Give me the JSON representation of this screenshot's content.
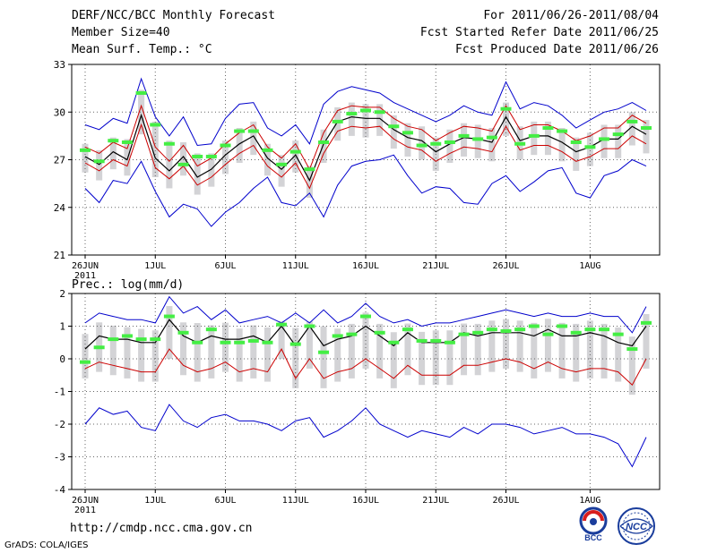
{
  "header": {
    "title": "DERF/NCC/BCC Monthly Forecast",
    "member_size": "Member Size=40",
    "variable": "Mean Surf. Temp.: °C",
    "period": "For 2011/06/26-2011/08/04",
    "started": "Fcst Started Refer Date 2011/06/25",
    "produced": "Fcst Produced Date 2011/06/26"
  },
  "footer": {
    "url": "http://cmdp.ncc.cma.gov.cn",
    "credit": "GrADS: COLA/IGES",
    "logo1_text": "BCC",
    "logo2_text": "NCC"
  },
  "colors": {
    "ensemble_max_min": "#0000cc",
    "spread": "#cc0000",
    "mean": "#000000",
    "box": "#d3d3d6",
    "median": "#44ee44",
    "grid": "#666666"
  },
  "chart_data": [
    {
      "type": "line",
      "title": "Mean Surf. Temp.: °C",
      "x_tick_labels": [
        "26JUN",
        "1JUL",
        "6JUL",
        "11JUL",
        "16JUL",
        "21JUL",
        "26JUL",
        "1AUG"
      ],
      "x_year_label": "2011",
      "x_tick_days": [
        0,
        5,
        10,
        15,
        20,
        25,
        30,
        36
      ],
      "ylim": [
        21,
        33
      ],
      "y_ticks": [
        21,
        24,
        27,
        30,
        33
      ],
      "series": [
        {
          "name": "max",
          "values": [
            29.2,
            28.9,
            29.6,
            29.3,
            32.1,
            29.7,
            28.5,
            29.7,
            27.9,
            28.0,
            29.6,
            30.5,
            30.6,
            29.0,
            28.5,
            29.2,
            28.0,
            30.5,
            31.3,
            31.6,
            31.4,
            31.2,
            30.6,
            30.2,
            29.8,
            29.4,
            29.8,
            30.4,
            30.0,
            29.8,
            31.9,
            30.2,
            30.6,
            30.4,
            29.8,
            29.0,
            29.5,
            30.0,
            30.2,
            30.6,
            30.1
          ]
        },
        {
          "name": "upper",
          "values": [
            27.8,
            27.4,
            28.1,
            27.7,
            30.4,
            27.8,
            26.9,
            27.9,
            26.6,
            27.1,
            28.0,
            28.7,
            29.2,
            27.8,
            27.1,
            28.0,
            26.4,
            28.7,
            30.1,
            30.4,
            30.3,
            30.3,
            29.6,
            29.1,
            28.9,
            28.2,
            28.7,
            29.1,
            29.0,
            28.8,
            30.4,
            28.9,
            29.2,
            29.2,
            28.8,
            28.2,
            28.5,
            29.0,
            29.0,
            29.8,
            29.3
          ]
        },
        {
          "name": "mean",
          "values": [
            27.2,
            26.7,
            27.5,
            27.0,
            29.8,
            27.1,
            26.3,
            27.2,
            25.9,
            26.4,
            27.3,
            28.0,
            28.5,
            27.1,
            26.4,
            27.3,
            25.7,
            28.0,
            29.4,
            29.7,
            29.6,
            29.6,
            28.9,
            28.4,
            28.2,
            27.5,
            28.0,
            28.4,
            28.3,
            28.1,
            29.7,
            28.2,
            28.5,
            28.5,
            28.1,
            27.5,
            27.8,
            28.3,
            28.3,
            29.1,
            28.6
          ]
        },
        {
          "name": "lower",
          "values": [
            26.8,
            26.3,
            27.0,
            26.6,
            29.2,
            26.5,
            25.8,
            26.6,
            25.4,
            25.9,
            26.7,
            27.4,
            27.9,
            26.6,
            25.9,
            26.8,
            25.2,
            27.4,
            28.8,
            29.1,
            29.0,
            29.1,
            28.3,
            27.8,
            27.6,
            26.9,
            27.4,
            27.8,
            27.7,
            27.5,
            29.1,
            27.6,
            27.9,
            27.9,
            27.5,
            26.9,
            27.2,
            27.7,
            27.7,
            28.5,
            28.0
          ]
        },
        {
          "name": "min",
          "values": [
            25.2,
            24.3,
            25.7,
            25.5,
            26.9,
            25.0,
            23.4,
            24.2,
            23.9,
            22.8,
            23.7,
            24.3,
            25.2,
            25.9,
            24.3,
            24.1,
            24.9,
            23.4,
            25.4,
            26.6,
            26.9,
            27.0,
            27.3,
            26.0,
            24.9,
            25.3,
            25.2,
            24.3,
            24.2,
            25.5,
            26.0,
            25.0,
            25.6,
            26.3,
            26.5,
            24.9,
            24.6,
            26.0,
            26.3,
            27.0,
            26.6
          ]
        },
        {
          "name": "median",
          "values": [
            27.6,
            26.9,
            28.2,
            28.1,
            31.2,
            29.2,
            28.0,
            26.7,
            27.2,
            27.2,
            27.9,
            28.8,
            28.8,
            27.6,
            26.7,
            27.5,
            26.4,
            28.1,
            29.4,
            29.9,
            30.1,
            30.0,
            29.1,
            28.7,
            27.9,
            28.0,
            28.1,
            28.5,
            28.3,
            28.4,
            30.2,
            28.0,
            28.5,
            29.0,
            28.8,
            28.1,
            27.8,
            28.3,
            28.6,
            29.4,
            29.0
          ]
        }
      ]
    },
    {
      "type": "line",
      "title": "Prec.: log(mm/d)",
      "x_tick_labels": [
        "26JUN",
        "1JUL",
        "6JUL",
        "11JUL",
        "16JUL",
        "21JUL",
        "26JUL",
        "1AUG"
      ],
      "x_year_label": "2011",
      "x_tick_days": [
        0,
        5,
        10,
        15,
        20,
        25,
        30,
        36
      ],
      "ylim": [
        -4,
        2
      ],
      "y_ticks": [
        -4,
        -3,
        -2,
        -1,
        0,
        1,
        2
      ],
      "series": [
        {
          "name": "max",
          "values": [
            1.1,
            1.4,
            1.3,
            1.2,
            1.2,
            1.1,
            1.9,
            1.4,
            1.6,
            1.2,
            1.5,
            1.1,
            1.2,
            1.3,
            1.1,
            1.4,
            1.1,
            1.5,
            1.1,
            1.3,
            1.7,
            1.3,
            1.1,
            1.2,
            1.0,
            1.1,
            1.1,
            1.2,
            1.3,
            1.4,
            1.5,
            1.4,
            1.3,
            1.4,
            1.3,
            1.3,
            1.4,
            1.3,
            1.3,
            0.8,
            1.6
          ]
        },
        {
          "name": "mean",
          "values": [
            0.3,
            0.7,
            0.6,
            0.6,
            0.5,
            0.5,
            1.2,
            0.7,
            0.5,
            0.7,
            0.6,
            0.6,
            0.7,
            0.5,
            1.0,
            0.4,
            1.0,
            0.4,
            0.6,
            0.7,
            1.0,
            0.7,
            0.4,
            0.8,
            0.5,
            0.5,
            0.5,
            0.8,
            0.7,
            0.8,
            0.8,
            0.8,
            0.7,
            0.9,
            0.7,
            0.7,
            0.8,
            0.7,
            0.5,
            0.4,
            1.0
          ]
        },
        {
          "name": "lower",
          "values": [
            -0.3,
            -0.1,
            -0.2,
            -0.3,
            -0.4,
            -0.4,
            0.3,
            -0.2,
            -0.4,
            -0.3,
            -0.1,
            -0.4,
            -0.3,
            -0.4,
            0.3,
            -0.6,
            0.0,
            -0.6,
            -0.4,
            -0.3,
            0.0,
            -0.3,
            -0.6,
            -0.2,
            -0.5,
            -0.5,
            -0.5,
            -0.2,
            -0.2,
            -0.1,
            0.0,
            -0.1,
            -0.3,
            -0.1,
            -0.3,
            -0.4,
            -0.3,
            -0.3,
            -0.4,
            -0.8,
            0.0
          ]
        },
        {
          "name": "min",
          "values": [
            -2.0,
            -1.5,
            -1.7,
            -1.6,
            -2.1,
            -2.2,
            -1.4,
            -1.9,
            -2.1,
            -1.8,
            -1.7,
            -1.9,
            -1.9,
            -2.0,
            -2.2,
            -1.9,
            -1.8,
            -2.4,
            -2.2,
            -1.9,
            -1.5,
            -2.0,
            -2.2,
            -2.4,
            -2.2,
            -2.3,
            -2.4,
            -2.1,
            -2.3,
            -2.0,
            -2.0,
            -2.1,
            -2.3,
            -2.2,
            -2.1,
            -2.3,
            -2.3,
            -2.4,
            -2.6,
            -3.3,
            -2.4
          ]
        },
        {
          "name": "median",
          "values": [
            -0.1,
            0.35,
            0.6,
            0.7,
            0.6,
            0.6,
            1.3,
            0.8,
            0.5,
            0.9,
            0.5,
            0.5,
            0.55,
            0.5,
            1.05,
            0.45,
            1.0,
            0.2,
            0.7,
            0.75,
            1.3,
            0.8,
            0.5,
            0.9,
            0.55,
            0.55,
            0.5,
            0.75,
            0.8,
            0.9,
            0.85,
            0.9,
            1.0,
            0.75,
            1.0,
            0.8,
            0.9,
            0.9,
            0.75,
            0.3,
            1.1
          ]
        }
      ]
    }
  ]
}
